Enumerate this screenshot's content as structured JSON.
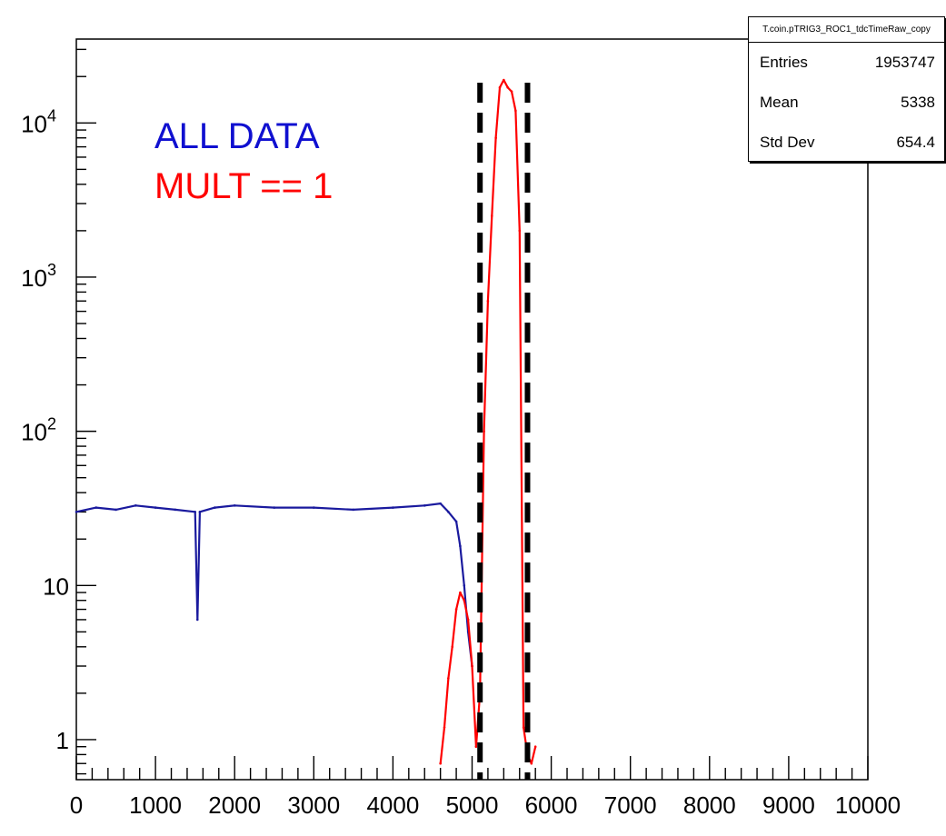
{
  "stats": {
    "title": "T.coin.pTRIG3_ROC1_tdcTimeRaw_copy",
    "rows": [
      {
        "label": "Entries",
        "value": "1953747"
      },
      {
        "label": "Mean",
        "value": "5338"
      },
      {
        "label": "Std Dev",
        "value": "654.4"
      }
    ]
  },
  "legend": {
    "all": "ALL DATA",
    "mult": "MULT == 1"
  },
  "colors": {
    "all": "#1a1a9e",
    "mult": "#ff0000",
    "cut": "#000000",
    "legend_all": "#1010d0",
    "legend_mult": "#ff0000"
  },
  "chart_data": {
    "type": "line",
    "title": "",
    "xlabel": "",
    "ylabel": "",
    "log_y": true,
    "xlim": [
      0,
      10000
    ],
    "ylim": [
      0.55,
      35000
    ],
    "x_tick_labels": [
      "0",
      "1000",
      "2000",
      "3000",
      "4000",
      "5000",
      "6000",
      "7000",
      "8000",
      "9000",
      "10000"
    ],
    "y_tick_labels": [
      {
        "value": 1,
        "base": "1",
        "exp": ""
      },
      {
        "value": 10,
        "base": "10",
        "exp": ""
      },
      {
        "value": 100,
        "base": "10",
        "exp": "2"
      },
      {
        "value": 1000,
        "base": "10",
        "exp": "3"
      },
      {
        "value": 10000,
        "base": "10",
        "exp": "4"
      }
    ],
    "series": [
      {
        "name": "ALL DATA",
        "x": [
          0,
          250,
          500,
          750,
          1000,
          1250,
          1500,
          1530,
          1560,
          1750,
          2000,
          2500,
          3000,
          3500,
          4000,
          4400,
          4600,
          4700,
          4800,
          4850,
          4900,
          4950,
          5000
        ],
        "y": [
          30,
          32,
          31,
          33,
          32,
          31,
          30,
          6,
          30,
          32,
          33,
          32,
          32,
          31,
          32,
          33,
          34,
          30,
          26,
          18,
          10,
          5,
          3
        ]
      },
      {
        "name": "MULT == 1",
        "x": [
          4600,
          4650,
          4700,
          4750,
          4800,
          4850,
          4900,
          4950,
          5000,
          5050,
          5100,
          5150,
          5200,
          5250,
          5300,
          5350,
          5400,
          5450,
          5500,
          5550,
          5600,
          5650,
          5700,
          5750,
          5800
        ],
        "y": [
          0.7,
          1.2,
          2.5,
          4,
          7,
          9,
          8,
          6,
          3,
          0.9,
          2,
          100,
          700,
          2500,
          8000,
          17000,
          19000,
          17000,
          16000,
          12000,
          2000,
          1.2,
          0.8,
          0.7,
          0.9
        ]
      }
    ],
    "cut_lines_x": [
      5100,
      5700
    ]
  }
}
